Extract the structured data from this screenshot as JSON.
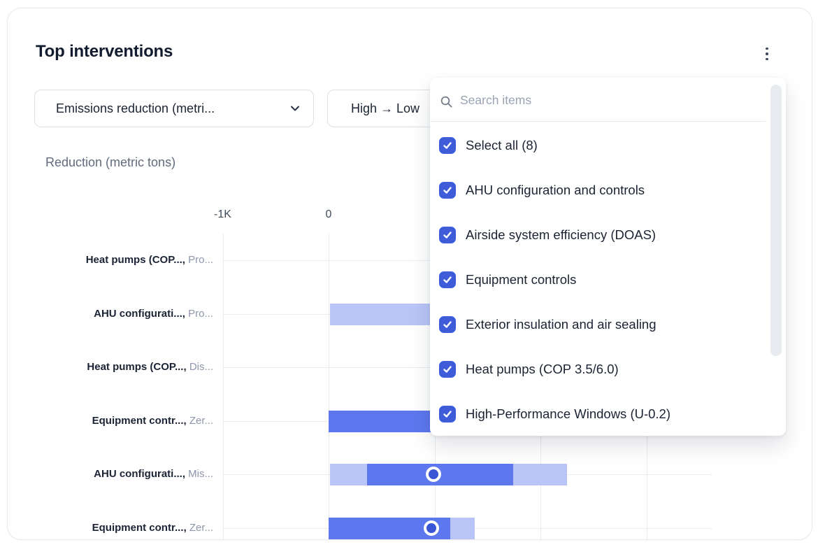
{
  "card": {
    "title": "Top interventions"
  },
  "toolbar": {
    "metric_filter_label": "Emissions reduction (metri...",
    "sort_filter_label": "High → Low"
  },
  "dropdown": {
    "search_placeholder": "Search items",
    "items": [
      {
        "label": "Select all (8)",
        "checked": true
      },
      {
        "label": "AHU configuration and controls",
        "checked": true
      },
      {
        "label": "Airside system efficiency (DOAS)",
        "checked": true
      },
      {
        "label": "Equipment controls",
        "checked": true
      },
      {
        "label": "Exterior insulation and air sealing",
        "checked": true
      },
      {
        "label": "Heat pumps (COP 3.5/6.0)",
        "checked": true
      },
      {
        "label": "High-Performance Windows (U-0.2)",
        "checked": true
      }
    ]
  },
  "chart_data": {
    "type": "bar",
    "orientation": "horizontal",
    "title": "Reduction (metric tons)",
    "xlabel": "Reduction (metric tons)",
    "xlim": [
      -1000,
      3630
    ],
    "grid": true,
    "x_ticks": [
      {
        "label": "-1K",
        "value": -1000
      },
      {
        "label": "0",
        "value": 0
      }
    ],
    "gridline_values": [
      -1000,
      0,
      1000,
      2000,
      3000
    ],
    "colors": {
      "core_bar": "#5d78ee",
      "band_bar": "#b9c5f7",
      "marker": "#3a55d6",
      "checkbox": "#3e5bd9"
    },
    "rows": [
      {
        "label": "Heat pumps (COP...,",
        "sublabel": "Pro...",
        "band": null,
        "core": null,
        "marker": null
      },
      {
        "label": "AHU configurati...,",
        "sublabel": "Pro...",
        "band": [
          0,
          1900
        ],
        "core": null,
        "marker": null
      },
      {
        "label": "Heat pumps (COP...,",
        "sublabel": "Dis...",
        "band": null,
        "core": null,
        "marker": null
      },
      {
        "label": "Equipment contr...,",
        "sublabel": "Zer...",
        "band": null,
        "core": [
          0,
          1520
        ],
        "marker": null
      },
      {
        "label": "AHU configurati...,",
        "sublabel": "Mis...",
        "band": [
          0,
          2250
        ],
        "core": [
          360,
          1740
        ],
        "marker": 990
      },
      {
        "label": "Equipment contr...,",
        "sublabel": "Zer...",
        "band": [
          0,
          1380
        ],
        "core": [
          0,
          1150
        ],
        "marker": 970
      }
    ]
  }
}
